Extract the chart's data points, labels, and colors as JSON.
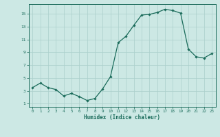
{
  "x": [
    0,
    1,
    2,
    3,
    4,
    5,
    6,
    7,
    8,
    9,
    10,
    11,
    12,
    13,
    14,
    15,
    16,
    17,
    18,
    19,
    20,
    21,
    22,
    23
  ],
  "y": [
    3.5,
    4.2,
    3.5,
    3.2,
    2.2,
    2.6,
    2.1,
    1.5,
    1.8,
    3.3,
    5.2,
    10.5,
    11.5,
    13.2,
    14.8,
    14.9,
    15.2,
    15.7,
    15.5,
    15.1,
    9.5,
    8.3,
    8.1,
    8.8
  ],
  "xlabel": "Humidex (Indice chaleur)",
  "line_color": "#1a6b5a",
  "marker": "D",
  "marker_size": 1.8,
  "bg_color": "#cce8e4",
  "grid_color": "#aacfcb",
  "xlim": [
    -0.5,
    23.5
  ],
  "ylim": [
    0.5,
    16.5
  ],
  "xticks": [
    0,
    1,
    2,
    3,
    4,
    5,
    6,
    7,
    8,
    9,
    10,
    11,
    12,
    13,
    14,
    15,
    16,
    17,
    18,
    19,
    20,
    21,
    22,
    23
  ],
  "yticks": [
    1,
    3,
    5,
    7,
    9,
    11,
    13,
    15
  ]
}
